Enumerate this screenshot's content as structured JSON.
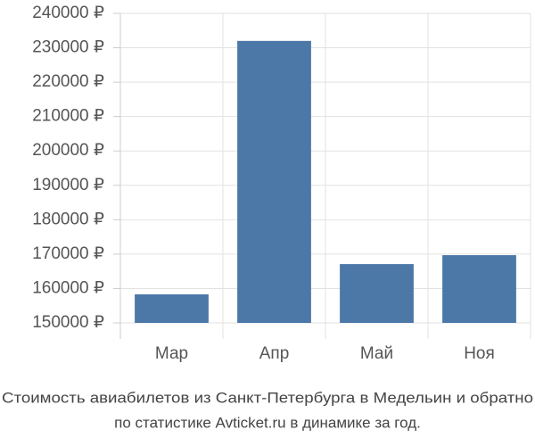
{
  "chart_data": {
    "type": "bar",
    "title": "Стоимость авиабилетов из Санкт-Петербурга в Медельин и обратно",
    "subtitle": "по статистике Avticket.ru в динамике за год.",
    "categories": [
      "Мар",
      "Апр",
      "Май",
      "Ноя"
    ],
    "values": [
      158300,
      232000,
      167100,
      169700
    ],
    "color": "#4c78a8",
    "ylim": [
      150000,
      240000
    ],
    "yticks": [
      {
        "value": 150000,
        "label": "150000 ₽"
      },
      {
        "value": 160000,
        "label": "160000 ₽"
      },
      {
        "value": 170000,
        "label": "170000 ₽"
      },
      {
        "value": 180000,
        "label": "180000 ₽"
      },
      {
        "value": 190000,
        "label": "190000 ₽"
      },
      {
        "value": 200000,
        "label": "200000 ₽"
      },
      {
        "value": 210000,
        "label": "210000 ₽"
      },
      {
        "value": 220000,
        "label": "220000 ₽"
      },
      {
        "value": 230000,
        "label": "230000 ₽"
      },
      {
        "value": 240000,
        "label": "240000 ₽"
      }
    ],
    "grid": true
  }
}
